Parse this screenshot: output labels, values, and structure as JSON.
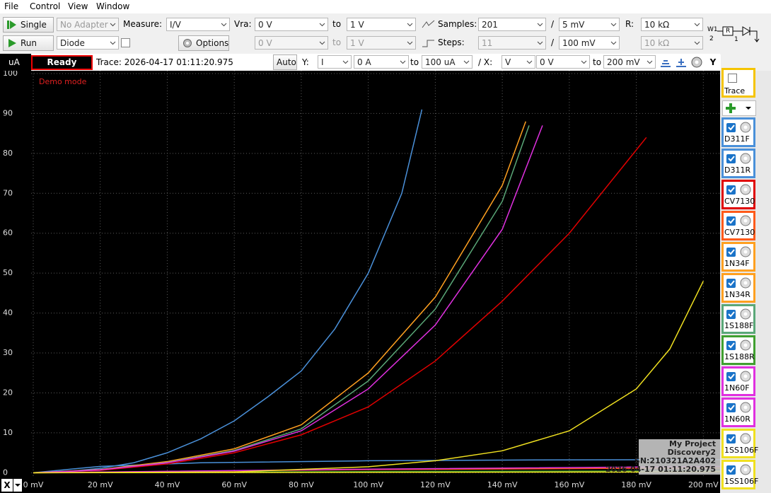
{
  "menu": [
    "File",
    "Control",
    "View",
    "Window"
  ],
  "toolbar": {
    "single": "Single",
    "run": "Run",
    "adapter": "No Adapter",
    "component": "Diode",
    "measure_label": "Measure:",
    "measure": "I/V",
    "options": "Options",
    "vra_label": "Vra:",
    "vra_from": "0 V",
    "to": "to",
    "vra_to": "1 V",
    "vrb_from": "0 V",
    "vrb_to": "1 V",
    "samples_label": "Samples:",
    "samples": "201",
    "slash": "/",
    "samples_step": "5 mV",
    "steps_label": "Steps:",
    "steps": "11",
    "steps_step": "100 mV",
    "r_label": "R:",
    "r1": "10 kΩ",
    "r2": "10 kΩ",
    "circuit": [
      "W1",
      "2",
      "R",
      "1"
    ]
  },
  "plot_bar": {
    "unit": "uA",
    "status": "Ready",
    "trace": "Trace: 2026-04-17 01:11:20.975",
    "auto": "Auto",
    "y_label": "Y:",
    "y_sel": "I",
    "y_from": "0 A",
    "to": "to",
    "y_to": "100 uA",
    "x_label": "/ X:",
    "x_sel": "V",
    "x_from": "0 V",
    "x_to": "200 mV",
    "y_button": "Y",
    "x_button": "X"
  },
  "traces_header": "Trace",
  "chart_data": {
    "type": "line",
    "annotation": "Demo mode",
    "info": [
      "My Project",
      "Discovery2",
      "SN:210321A2A402",
      "2026-04-17 01:11:20.975"
    ],
    "xlim": [
      0,
      205
    ],
    "ylim": [
      -1,
      100
    ],
    "grid": true,
    "xticks": [
      {
        "value": 0,
        "label": "0 mV"
      },
      {
        "value": 20,
        "label": "20 mV"
      },
      {
        "value": 40,
        "label": "40 mV"
      },
      {
        "value": 60,
        "label": "60 mV"
      },
      {
        "value": 80,
        "label": "80 mV"
      },
      {
        "value": 100,
        "label": "100 mV"
      },
      {
        "value": 120,
        "label": "120 mV"
      },
      {
        "value": 140,
        "label": "140 mV"
      },
      {
        "value": 160,
        "label": "160 mV"
      },
      {
        "value": 180,
        "label": "180 mV"
      },
      {
        "value": 200,
        "label": "200 mV"
      }
    ],
    "yticks": [
      0,
      10,
      20,
      30,
      40,
      50,
      60,
      70,
      80,
      90,
      100
    ],
    "series": [
      {
        "name": "D311F",
        "color": "#4a90d9",
        "x": [
          0,
          10,
          20,
          30,
          40,
          50,
          60,
          70,
          80,
          90,
          100,
          110,
          116
        ],
        "values": [
          0,
          0.3,
          1.1,
          2.5,
          5,
          8.5,
          13,
          19,
          25.5,
          36,
          50,
          70,
          91
        ]
      },
      {
        "name": "D311R",
        "color": "#4a90d9",
        "x": [
          0,
          20,
          50,
          100,
          150,
          205
        ],
        "values": [
          0,
          1.6,
          2.5,
          3,
          3.2,
          3.3
        ]
      },
      {
        "name": "CV7130",
        "color": "#e00000",
        "x": [
          0,
          20,
          40,
          60,
          80,
          100,
          120,
          140,
          160,
          183
        ],
        "values": [
          0,
          0.6,
          2.2,
          5,
          9.5,
          16.5,
          28,
          43,
          60,
          84
        ]
      },
      {
        "name": "CV7130",
        "color": "#ff5a1a",
        "x": [
          0,
          100,
          205
        ],
        "values": [
          0,
          0.8,
          1.2
        ]
      },
      {
        "name": "1N34F",
        "color": "#ffa020",
        "x": [
          0,
          20,
          40,
          60,
          80,
          100,
          120,
          140,
          147
        ],
        "values": [
          0,
          0.8,
          2.8,
          6,
          12,
          25,
          44,
          72,
          88
        ]
      },
      {
        "name": "1N34R",
        "color": "#ffa020",
        "x": [
          0,
          100,
          205
        ],
        "values": [
          0,
          0.2,
          0.4
        ]
      },
      {
        "name": "1S188F",
        "color": "#5aa878",
        "x": [
          0,
          20,
          40,
          60,
          80,
          100,
          120,
          140,
          148
        ],
        "values": [
          0,
          0.7,
          2.6,
          5.6,
          11,
          23,
          41,
          68,
          87
        ]
      },
      {
        "name": "1S188R",
        "color": "#40a030",
        "x": [
          0,
          100,
          205
        ],
        "values": [
          0,
          0.3,
          0.5
        ]
      },
      {
        "name": "1N60F",
        "color": "#e030e0",
        "x": [
          0,
          20,
          40,
          60,
          80,
          100,
          120,
          140,
          152
        ],
        "values": [
          0,
          0.7,
          2.5,
          5.4,
          10.5,
          21,
          37,
          61,
          87
        ]
      },
      {
        "name": "1N60R",
        "color": "#e030e0",
        "x": [
          0,
          100,
          205
        ],
        "values": [
          0,
          0.9,
          1.6
        ]
      },
      {
        "name": "1SS106F",
        "color": "#f0e020",
        "x": [
          0,
          60,
          100,
          120,
          140,
          160,
          180,
          190,
          200
        ],
        "values": [
          0,
          0.2,
          1.5,
          3,
          5.5,
          10.5,
          21,
          31,
          48
        ]
      },
      {
        "name": "1SS106F",
        "color": "#f0e020",
        "x": [
          0,
          100,
          205
        ],
        "values": [
          0,
          0.1,
          0.2
        ]
      }
    ]
  }
}
